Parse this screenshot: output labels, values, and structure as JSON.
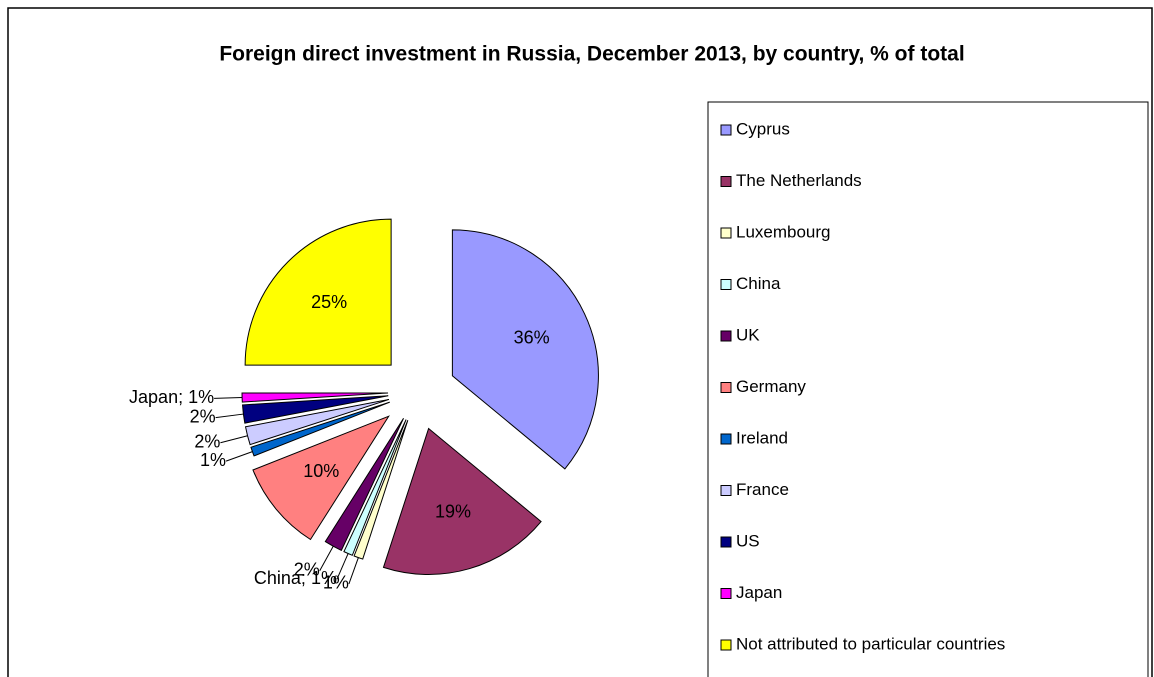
{
  "chart_data": {
    "type": "pie",
    "title": "Foreign direct investment in Russia, December 2013, by country, % of total",
    "categories": [
      "Cyprus",
      "The Netherlands",
      "Luxembourg",
      "China",
      "UK",
      "Germany",
      "Ireland",
      "France",
      "US",
      "Japan",
      "Not attributed to particular countries"
    ],
    "values": [
      36,
      19,
      1,
      1,
      2,
      10,
      1,
      2,
      2,
      1,
      25
    ],
    "value_labels": [
      "36%",
      "19%",
      "1%",
      "China; 1%",
      "2%",
      "10%",
      "1%",
      "2%",
      "2%",
      "Japan; 1%",
      "25%"
    ],
    "colors": [
      "#9999ff",
      "#993366",
      "#ffffcc",
      "#ccffff",
      "#660066",
      "#ff8080",
      "#0066cc",
      "#ccccff",
      "#000080",
      "#ff00ff",
      "#ffff00"
    ],
    "legend": "right"
  }
}
